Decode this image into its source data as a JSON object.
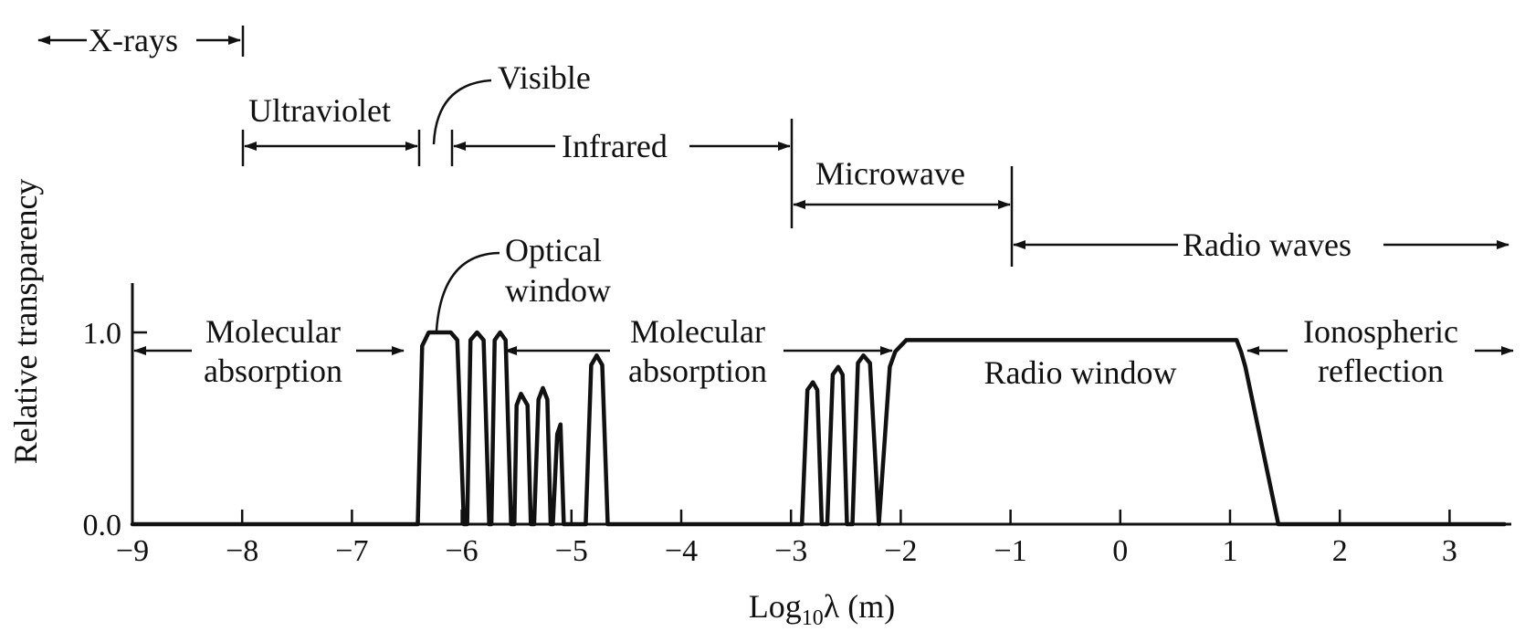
{
  "chart_data": {
    "type": "line",
    "xlabel": "Log10λ (m)",
    "ylabel": "Relative transparency",
    "x_ticks": [
      "−9",
      "−8",
      "−7",
      "−6",
      "−5",
      "−4",
      "−3",
      "−2",
      "−1",
      "0",
      "1",
      "2",
      "3"
    ],
    "y_ticks": [
      "0.0",
      "1.0"
    ],
    "xlim": [
      -9,
      3.5
    ],
    "ylim": [
      0,
      1.25
    ],
    "bands": [
      {
        "label": "X-rays",
        "from": -9.8,
        "to": -8
      },
      {
        "label": "Ultraviolet",
        "from": -8,
        "to": -6.4
      },
      {
        "label": "Visible",
        "at": -6.2
      },
      {
        "label": "Infrared",
        "from": -6.1,
        "to": -3
      },
      {
        "label": "Microwave",
        "from": -3,
        "to": -1
      },
      {
        "label": "Radio waves",
        "from": -1,
        "to": 3.5
      }
    ],
    "regions": [
      {
        "label_lines": [
          "Molecular",
          "absorption"
        ],
        "from": -9,
        "to": -6.3
      },
      {
        "label_lines": [
          "Molecular",
          "absorption"
        ],
        "from": -5.6,
        "to": -2.1
      },
      {
        "label_lines": [
          "Radio window"
        ],
        "center": -0.4
      },
      {
        "label_lines": [
          "Ionospheric",
          "reflection"
        ],
        "from": 1.2,
        "to": 3.5
      }
    ],
    "annotations": {
      "optical_window": [
        "Optical",
        "window"
      ]
    },
    "series": [
      {
        "x": [
          -9,
          -6.4,
          -6.36,
          -6.3,
          -6.2,
          -6.1,
          -6.04,
          -5.98,
          -5.95,
          -5.92,
          -5.86,
          -5.8,
          -5.75,
          -5.73,
          -5.7,
          -5.65,
          -5.6,
          -5.55,
          -5.52,
          -5.5,
          -5.46,
          -5.4,
          -5.37,
          -5.34,
          -5.3,
          -5.26,
          -5.22,
          -5.19,
          -5.17,
          -5.13,
          -5.1,
          -5.07,
          -4.87,
          -4.82,
          -4.77,
          -4.72,
          -4.67,
          -2.9,
          -2.85,
          -2.8,
          -2.76,
          -2.72,
          -2.67,
          -2.62,
          -2.57,
          -2.53,
          -2.49,
          -2.44,
          -2.39,
          -2.34,
          -2.28,
          -2.2,
          -2.1,
          -2.05,
          -1.95,
          1.0,
          1.06,
          1.1,
          1.14,
          1.44,
          3.5
        ],
        "y": [
          0,
          0,
          0.93,
          1.0,
          1.0,
          1.0,
          0.96,
          0,
          0,
          0.96,
          1.0,
          0.96,
          0,
          0,
          0.96,
          1.0,
          0.96,
          0,
          0,
          0.62,
          0.68,
          0.62,
          0,
          0,
          0.65,
          0.71,
          0.65,
          0,
          0,
          0.47,
          0.52,
          0,
          0,
          0.83,
          0.88,
          0.83,
          0,
          0,
          0.7,
          0.74,
          0.7,
          0,
          0,
          0.78,
          0.82,
          0.78,
          0,
          0,
          0.84,
          0.88,
          0.84,
          0,
          0.82,
          0.9,
          0.96,
          0.96,
          0.96,
          0.9,
          0.82,
          0,
          0
        ]
      }
    ]
  }
}
